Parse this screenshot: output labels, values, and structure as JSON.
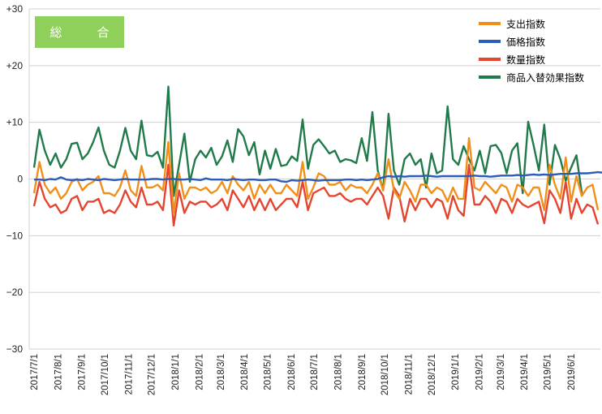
{
  "badge": {
    "label": "総　合",
    "color": "#8fd05a"
  },
  "chart_data": {
    "type": "line",
    "ylim": [
      -30,
      30
    ],
    "yticks": [
      30,
      20,
      10,
      0,
      -10,
      -20,
      -30
    ],
    "ytick_labels": [
      "+30",
      "+20",
      "+10",
      "0",
      "−10",
      "−20",
      "−30"
    ],
    "grid": true,
    "legend_position": "top-right",
    "x_start": "2017-07-01",
    "x_step_days": 7,
    "x_tick_labels": [
      "2017/7/1",
      "2017/8/1",
      "2017/9/1",
      "2017/10/1",
      "2017/11/1",
      "2017/12/1",
      "2018/1/1",
      "2018/2/1",
      "2018/3/1",
      "2018/4/1",
      "2018/5/1",
      "2018/6/1",
      "2018/7/1",
      "2018/8/1",
      "2018/9/1",
      "2018/10/1",
      "2018/11/1",
      "2018/12/1",
      "2019/1/1",
      "2019/2/1",
      "2019/3/1",
      "2019/4/1",
      "2019/5/1",
      "2019/6/1"
    ],
    "series": [
      {
        "name": "支出指数",
        "color": "#f0901a",
        "values": [
          -2.5,
          3,
          -1,
          -2.5,
          -1.5,
          -3.5,
          -2.5,
          -0.5,
          0,
          -2,
          -1,
          -0.5,
          0.5,
          -2.5,
          -2.5,
          -3,
          -1.5,
          1.5,
          -2,
          -3,
          2.3,
          -1.5,
          -1.5,
          -1,
          -2,
          6.5,
          -6,
          1,
          -3.5,
          -1.5,
          -1.5,
          -2,
          -1.5,
          -2.5,
          -2,
          -0.5,
          -2.5,
          0.5,
          -1,
          -2,
          -0.5,
          -3.5,
          -1,
          -2.5,
          -1,
          -2.5,
          -2.5,
          -1,
          -2,
          -3,
          3,
          -3.5,
          -1.5,
          1,
          0.5,
          -1,
          -1,
          -0.5,
          -2,
          -1,
          -1.5,
          -1.5,
          -2.5,
          -1,
          1,
          -2,
          3.5,
          -2,
          -3.5,
          -0.5,
          -2,
          -4,
          -1,
          -1,
          -2.5,
          -1.5,
          -2,
          -4,
          -1.5,
          -3.5,
          -3.5,
          7.2,
          -1.5,
          -2,
          -0.5,
          -1.5,
          -2.5,
          -1,
          -1.5,
          -4,
          -1,
          -1.5,
          -3,
          -1.5,
          -1.5,
          -5.5,
          2.5,
          -1,
          -3.5,
          3.8,
          -4,
          0.5,
          -3,
          -1.5,
          -1,
          -5.5
        ]
      },
      {
        "name": "価格指数",
        "color": "#2c5bb8",
        "values": [
          -0.1,
          -0.1,
          -0.2,
          0,
          -0.1,
          0.3,
          -0.1,
          -0.2,
          -0.1,
          -0.2,
          0,
          -0.1,
          -0.2,
          0,
          -0.1,
          -0.2,
          -0.1,
          0,
          -0.1,
          -0.1,
          -0.1,
          -0.1,
          0,
          0,
          -0.1,
          0,
          0,
          -0.1,
          -0.1,
          0,
          -0.1,
          -0.2,
          0.1,
          -0.1,
          -0.1,
          -0.1,
          -0.2,
          0,
          -0.1,
          -0.2,
          -0.1,
          -0.1,
          -0.2,
          -0.2,
          -0.1,
          -0.1,
          -0.4,
          -0.5,
          -0.2,
          -0.3,
          -0.2,
          -0.1,
          -0.2,
          -0.3,
          -0.2,
          -0.2,
          -0.2,
          -0.2,
          -0.1,
          -0.1,
          -0.2,
          -0.1,
          -0.2,
          -0.1,
          0,
          0.3,
          0.5,
          0.4,
          0.5,
          0.4,
          0.5,
          0.5,
          0.5,
          0.6,
          0.5,
          0.4,
          0.5,
          0.5,
          0.5,
          0.5,
          0.5,
          0.5,
          0.6,
          0.5,
          0.5,
          0.4,
          0.5,
          0.6,
          0.6,
          0.6,
          0.7,
          0.6,
          0.7,
          0.8,
          0.7,
          0.8,
          0.7,
          0.8,
          0.9,
          0.9,
          0.9,
          1,
          1,
          1,
          1.1,
          1.2,
          1.1
        ]
      },
      {
        "name": "数量指数",
        "color": "#e54530",
        "values": [
          -4.8,
          -0.5,
          -3.5,
          -5,
          -4.5,
          -6,
          -5.5,
          -3.5,
          -3,
          -5.5,
          -4,
          -4,
          -3.5,
          -6,
          -5.5,
          -6,
          -4.5,
          -2,
          -4,
          -5,
          -1.5,
          -4.5,
          -4.5,
          -4,
          -5.5,
          2.5,
          -8.2,
          -2,
          -6,
          -4,
          -4.5,
          -4,
          -4,
          -5,
          -4.5,
          -3.5,
          -5.5,
          -2,
          -3.5,
          -5,
          -3,
          -5.5,
          -3.5,
          -5.5,
          -3.5,
          -5.5,
          -4.5,
          -3.5,
          -3.5,
          -5,
          -0.5,
          -5.5,
          -2.5,
          -2,
          -1.5,
          -3,
          -3,
          -2.5,
          -3.5,
          -4,
          -3.5,
          -3.5,
          -4.5,
          -3,
          -1.5,
          -3,
          -7,
          -1.5,
          -3,
          -7.5,
          -3.5,
          -5.5,
          -3.5,
          -3.5,
          -5,
          -3.5,
          -4,
          -7,
          -3,
          -5.5,
          -6.5,
          2.5,
          -4.5,
          -4.5,
          -3,
          -4,
          -6,
          -3.5,
          -4,
          -6,
          -3.5,
          -4.5,
          -5,
          -4.5,
          -4,
          -7.8,
          -2,
          -3.5,
          -6,
          -0.5,
          -7,
          -3.5,
          -6,
          -4.5,
          -5,
          -8
        ]
      },
      {
        "name": "商品入替効果指数",
        "color": "#217a4a",
        "values": [
          2,
          8.7,
          5,
          2.5,
          4.5,
          2,
          3.5,
          6.2,
          6.4,
          3.5,
          4.5,
          6.5,
          9.1,
          5,
          2.5,
          2,
          5,
          9,
          5,
          3.5,
          10.3,
          4.2,
          4,
          4.8,
          2,
          16.3,
          -3,
          2.5,
          8,
          -0.5,
          3.5,
          5,
          3.8,
          5.5,
          2.5,
          4,
          6.8,
          3,
          8.8,
          7.5,
          4.2,
          6.5,
          0.8,
          5,
          1.8,
          5.3,
          2.3,
          2.5,
          4,
          3.2,
          10.5,
          1.8,
          6,
          7,
          5.8,
          4.5,
          5,
          3,
          3.5,
          3.3,
          2.8,
          7.2,
          3.2,
          11.8,
          1.5,
          -2,
          11.5,
          1.5,
          -1,
          3.5,
          4.5,
          2.5,
          3.5,
          -1.5,
          4.5,
          1,
          1.5,
          12.8,
          3.5,
          2.5,
          5.8,
          3.5,
          1.5,
          5,
          1,
          5.8,
          6,
          4.6,
          1,
          5,
          6.3,
          -2.5,
          10.1,
          6,
          1.5,
          9.6,
          -1,
          6,
          3.5,
          -0.3,
          2,
          4.2,
          -2.5
        ]
      }
    ]
  }
}
